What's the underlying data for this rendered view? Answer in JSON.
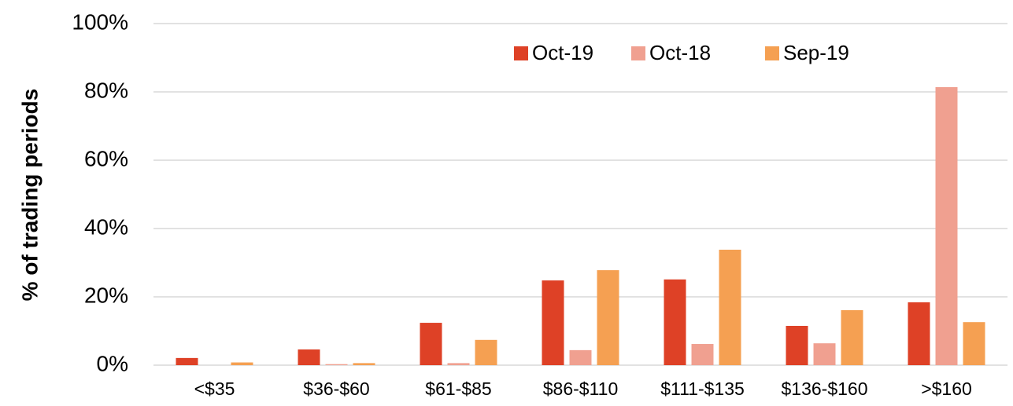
{
  "chart_data": {
    "type": "bar",
    "y_label": "% of trading periods",
    "categories": [
      "<$35",
      "$36-$60",
      "$61-$85",
      "$86-$110",
      "$111-$135",
      "$136-$160",
      ">$160"
    ],
    "series": [
      {
        "name": "Oct-19",
        "color": "#de4126",
        "values": [
          2.1,
          4.6,
          12.4,
          24.8,
          25.1,
          11.5,
          18.4
        ]
      },
      {
        "name": "Oct-18",
        "color": "#f0a090",
        "values": [
          0,
          0.3,
          0.6,
          4.4,
          6.2,
          6.4,
          81.4
        ]
      },
      {
        "name": "Sep-19",
        "color": "#f5a052",
        "values": [
          0.8,
          0.6,
          7.4,
          27.8,
          33.8,
          16.1,
          12.6
        ]
      }
    ],
    "ylim": [
      0,
      100
    ],
    "yticks": [
      {
        "value": 0,
        "label": "0%"
      },
      {
        "value": 20,
        "label": "20%"
      },
      {
        "value": 40,
        "label": "40%"
      },
      {
        "value": 60,
        "label": "60%"
      },
      {
        "value": 80,
        "label": "80%"
      },
      {
        "value": 100,
        "label": "100%"
      }
    ],
    "grid": true,
    "legend": "top-right"
  }
}
